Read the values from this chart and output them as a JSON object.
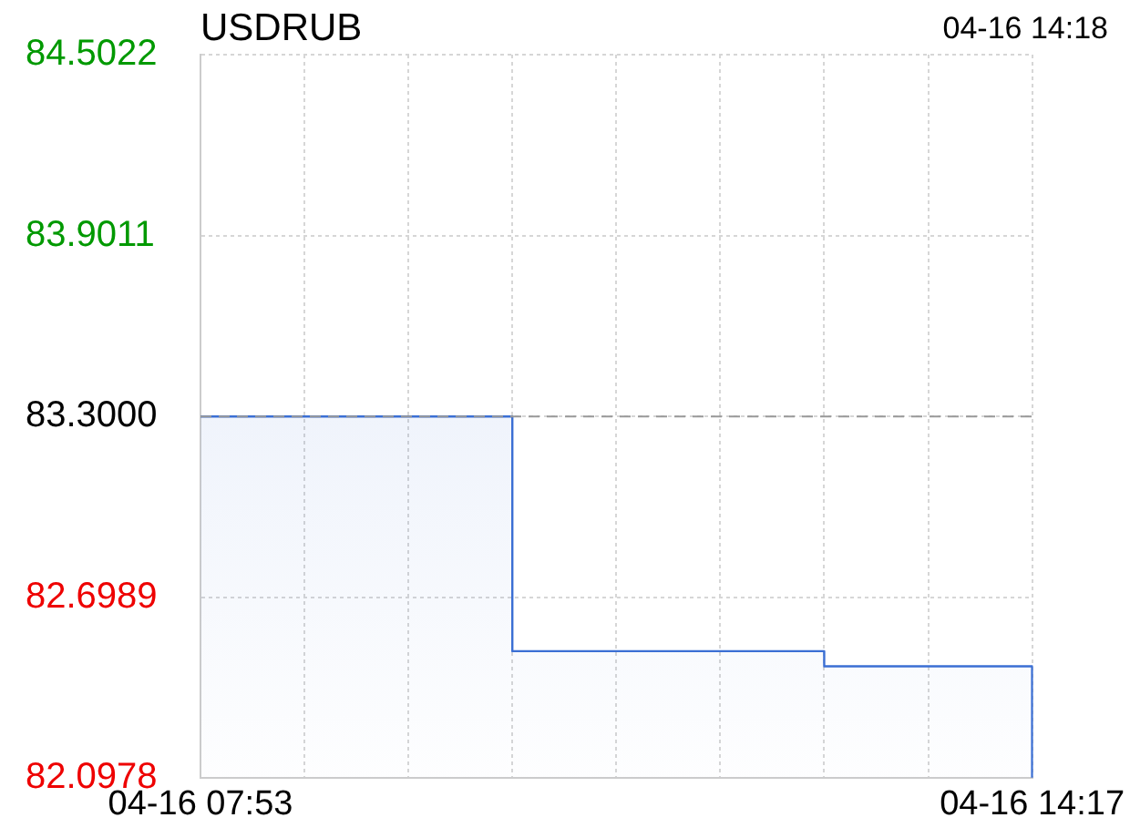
{
  "chart_data": {
    "type": "step",
    "title": "USDRUB",
    "annotations": [
      "04-16 14:18"
    ],
    "categories": [
      "04-16 07:53",
      null,
      null,
      null,
      null,
      null,
      null,
      null,
      "04-16 14:17"
    ],
    "series": [
      {
        "color": "#3b6fd4",
        "values": [
          83.3,
          83.3,
          83.3,
          82.52,
          82.52,
          82.52,
          82.47,
          82.47,
          82.1
        ]
      }
    ],
    "ylim": [
      82.0978,
      84.5022
    ],
    "yticks": [
      84.5022,
      83.9011,
      {
        "value": 83.3,
        "label": "83.3000"
      },
      82.6989,
      82.0978
    ],
    "ref_lines": [
      {
        "axis": "y",
        "value": 83.3,
        "color": "#999999",
        "line_style": "dashed"
      }
    ],
    "grid": true,
    "legend": false,
    "marker": "none",
    "line_style": "solid"
  }
}
